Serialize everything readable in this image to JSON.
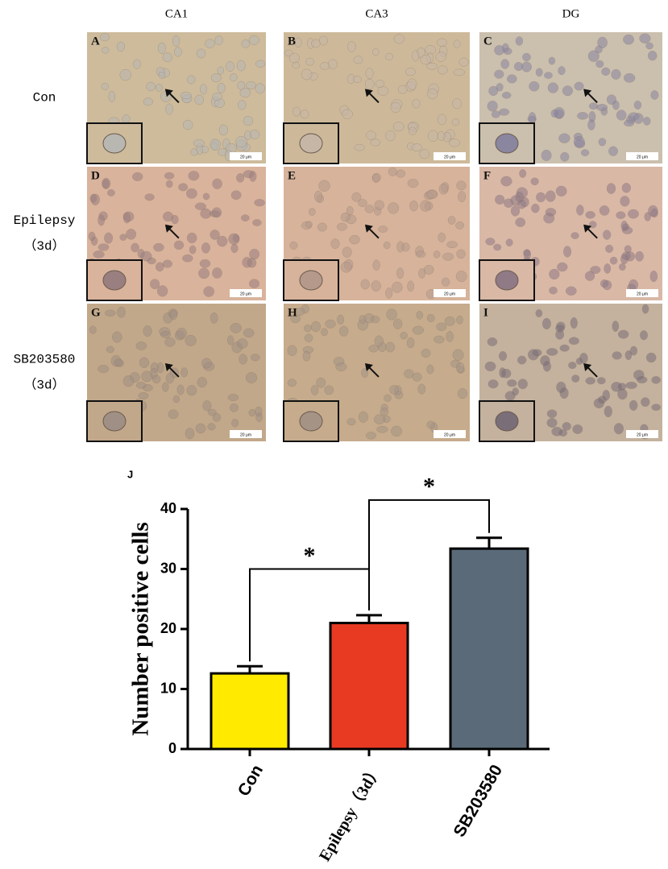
{
  "figure": {
    "column_headers": [
      "CA1",
      "CA3",
      "DG"
    ],
    "row_labels": [
      [
        "Con"
      ],
      [
        "Epilepsy",
        "（3d）"
      ],
      [
        "SB203580",
        "（3d）"
      ]
    ],
    "panels": [
      {
        "letter": "A",
        "scale": "20 μm"
      },
      {
        "letter": "B",
        "scale": "20 μm"
      },
      {
        "letter": "C",
        "scale": "20 μm"
      },
      {
        "letter": "D",
        "scale": "20 μm"
      },
      {
        "letter": "E",
        "scale": "20 μm"
      },
      {
        "letter": "F",
        "scale": "20 μm"
      },
      {
        "letter": "G",
        "scale": "20 μm"
      },
      {
        "letter": "H",
        "scale": "20 μm"
      },
      {
        "letter": "I",
        "scale": "20 μm"
      }
    ]
  },
  "chart_data": {
    "type": "bar",
    "panel_label": "J",
    "y_label": "Number positive cells",
    "categories": [
      "Con",
      "Epilepsy（3d）",
      "SB203580"
    ],
    "values": [
      12.6,
      21,
      33.4
    ],
    "errors": [
      1.2,
      1.3,
      1.8
    ],
    "colors": [
      "#ffea00",
      "#e83a22",
      "#5a6a78"
    ],
    "ylim": [
      0,
      40
    ],
    "yticks": [
      0,
      10,
      20,
      30,
      40
    ],
    "brackets": [
      {
        "from": 0,
        "to": 1,
        "y": 30,
        "label": "*"
      },
      {
        "from": 1,
        "to": 2,
        "y": 41.5,
        "label": "*"
      }
    ]
  }
}
